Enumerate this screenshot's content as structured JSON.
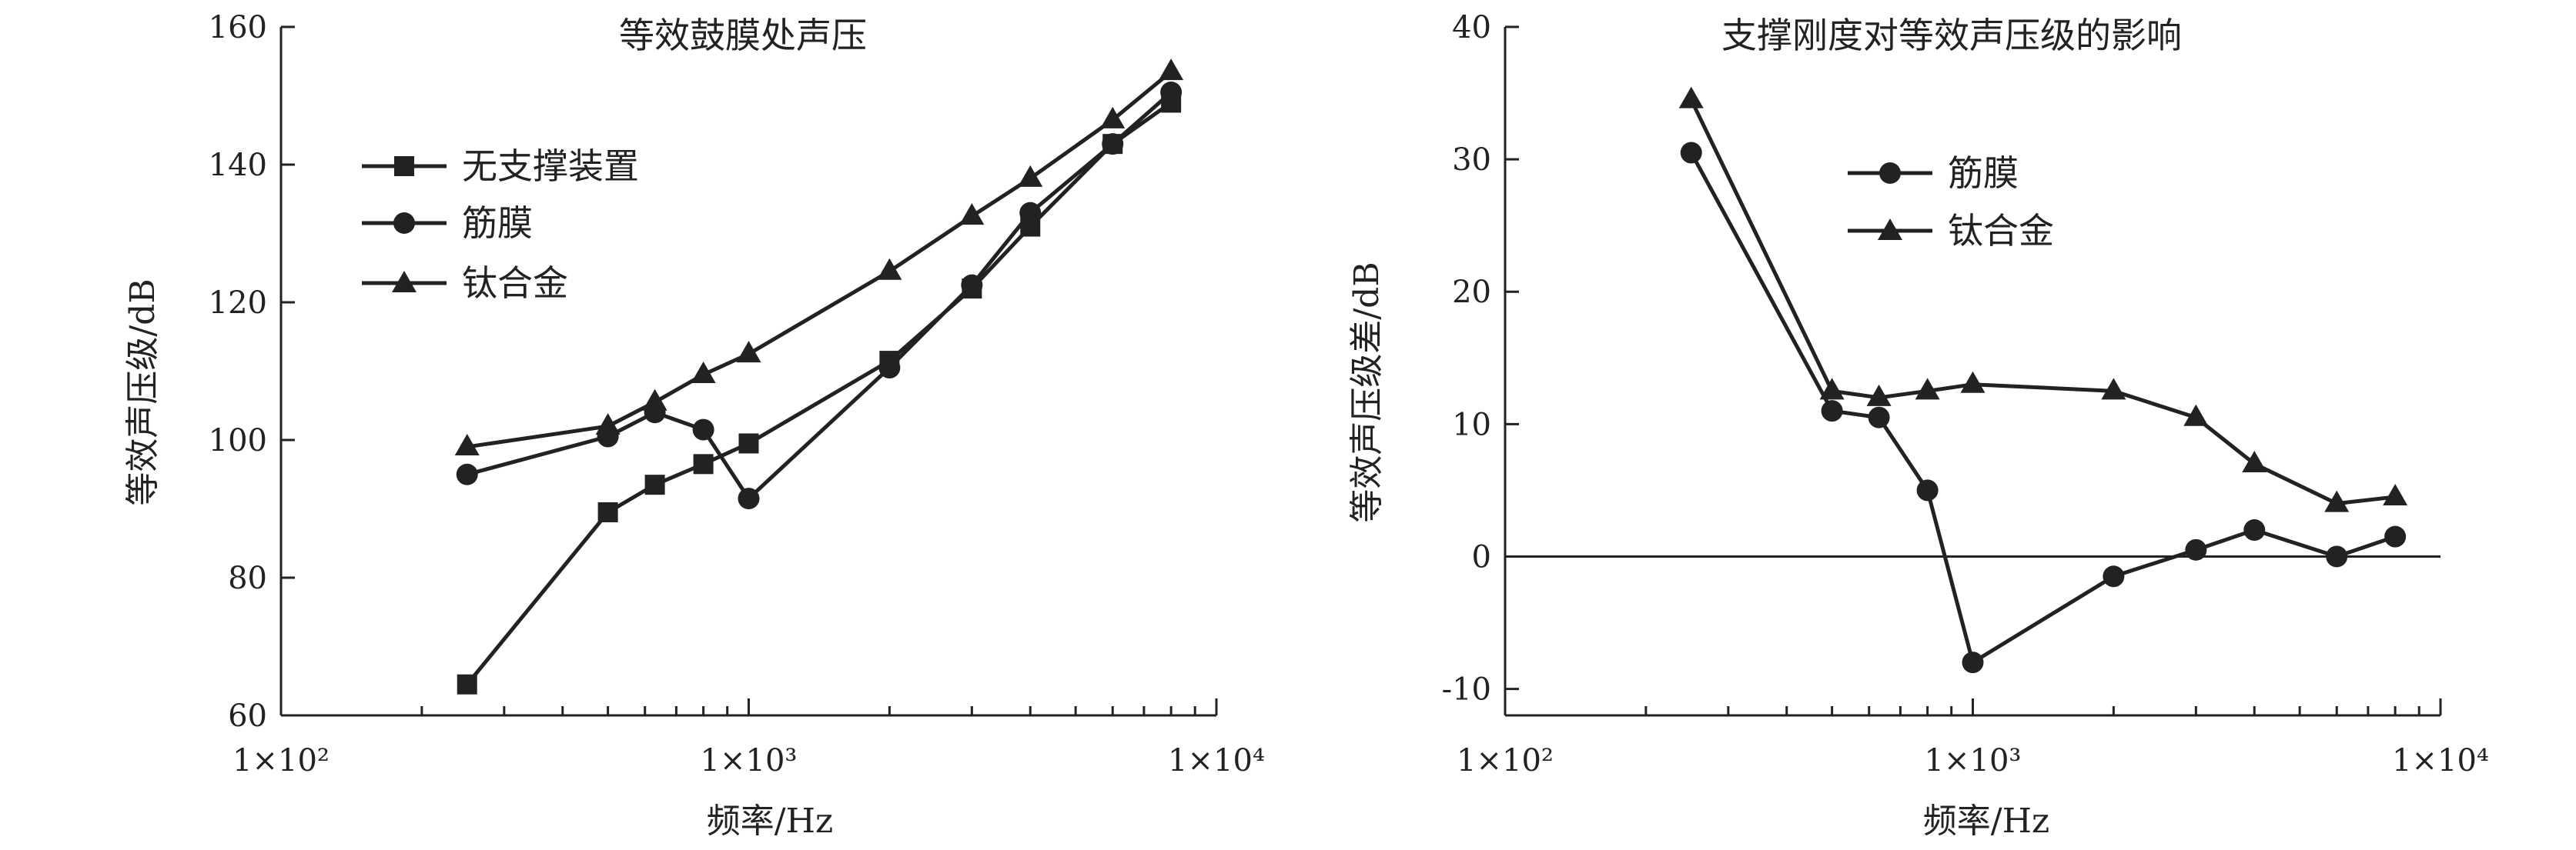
{
  "chart_data": [
    {
      "type": "line",
      "title": "等效鼓膜处声压",
      "xlabel": "频率/Hz",
      "ylabel": "等效声压级/dB",
      "xscale": "log",
      "xlim": [
        100,
        10000
      ],
      "ylim": [
        60,
        160
      ],
      "xticks": [
        100,
        1000,
        10000
      ],
      "xtick_labels": [
        "1×10²",
        "1×10³",
        "1×10⁴"
      ],
      "yticks": [
        60,
        80,
        100,
        120,
        140,
        160
      ],
      "grid": false,
      "legend_position": "upper-left",
      "x": [
        250,
        500,
        630,
        800,
        1000,
        2000,
        3000,
        4000,
        6000,
        8000
      ],
      "series": [
        {
          "name": "无支撑装置",
          "marker": "square",
          "values": [
            64.5,
            89.5,
            93.5,
            96.5,
            99.5,
            111.5,
            122.0,
            131.0,
            143.0,
            149.0
          ]
        },
        {
          "name": "筋膜",
          "marker": "circle",
          "values": [
            95.0,
            100.5,
            104.0,
            101.5,
            91.5,
            110.5,
            122.5,
            133.0,
            143.0,
            150.5
          ]
        },
        {
          "name": "钛合金",
          "marker": "triangle",
          "values": [
            99.0,
            102.0,
            105.5,
            109.5,
            112.5,
            124.5,
            132.5,
            138.0,
            146.5,
            153.5
          ]
        }
      ]
    },
    {
      "type": "line",
      "title": "支撑刚度对等效声压级的影响",
      "xlabel": "频率/Hz",
      "ylabel": "等效声压级差/dB",
      "xscale": "log",
      "xlim": [
        100,
        10000
      ],
      "ylim": [
        -12,
        40
      ],
      "xticks": [
        100,
        1000,
        10000
      ],
      "xtick_labels": [
        "1×10²",
        "1×10³",
        "1×10⁴"
      ],
      "yticks": [
        -10,
        0,
        10,
        20,
        30,
        40
      ],
      "reference_line_y": 0,
      "grid": false,
      "legend_position": "upper-center",
      "x": [
        250,
        500,
        630,
        800,
        1000,
        2000,
        3000,
        4000,
        6000,
        8000
      ],
      "series": [
        {
          "name": "筋膜",
          "marker": "circle",
          "values": [
            30.5,
            11.0,
            10.5,
            5.0,
            -8.0,
            -1.5,
            0.5,
            2.0,
            0.0,
            1.5
          ]
        },
        {
          "name": "钛合金",
          "marker": "triangle",
          "values": [
            34.5,
            12.5,
            12.0,
            12.5,
            13.0,
            12.5,
            10.5,
            7.0,
            4.0,
            4.5
          ]
        }
      ]
    }
  ]
}
